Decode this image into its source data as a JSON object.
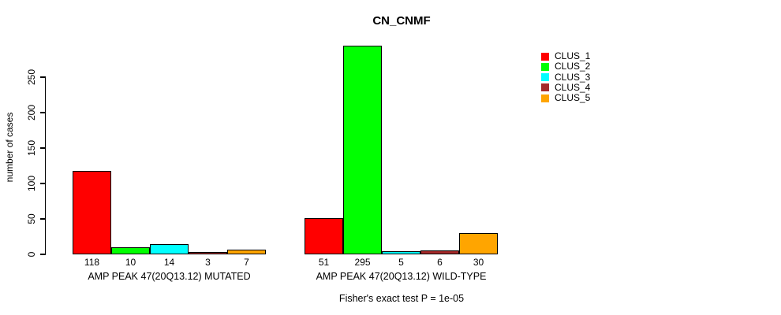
{
  "chart_data": {
    "type": "bar",
    "title": "CN_CNMF",
    "xlabel": "",
    "ylabel": "number of cases",
    "ylim": [
      0,
      250
    ],
    "yticks": [
      0,
      50,
      100,
      150,
      200,
      250
    ],
    "grid": false,
    "legend_position": "right",
    "bar_value_labels_shown": true,
    "categories": [
      "AMP PEAK 47(20Q13.12) MUTATED",
      "AMP PEAK 47(20Q13.12) WILD-TYPE"
    ],
    "series": [
      {
        "name": "CLUS_1",
        "color": "#FF0000",
        "values": [
          118,
          51
        ]
      },
      {
        "name": "CLUS_2",
        "color": "#00FF00",
        "values": [
          10,
          295
        ]
      },
      {
        "name": "CLUS_3",
        "color": "#00FFFF",
        "values": [
          14,
          5
        ]
      },
      {
        "name": "CLUS_4",
        "color": "#A52A2A",
        "values": [
          3,
          6
        ]
      },
      {
        "name": "CLUS_5",
        "color": "#FFA500",
        "values": [
          7,
          30
        ]
      }
    ],
    "annotation": "Fisher's exact test P = 1e-05"
  }
}
